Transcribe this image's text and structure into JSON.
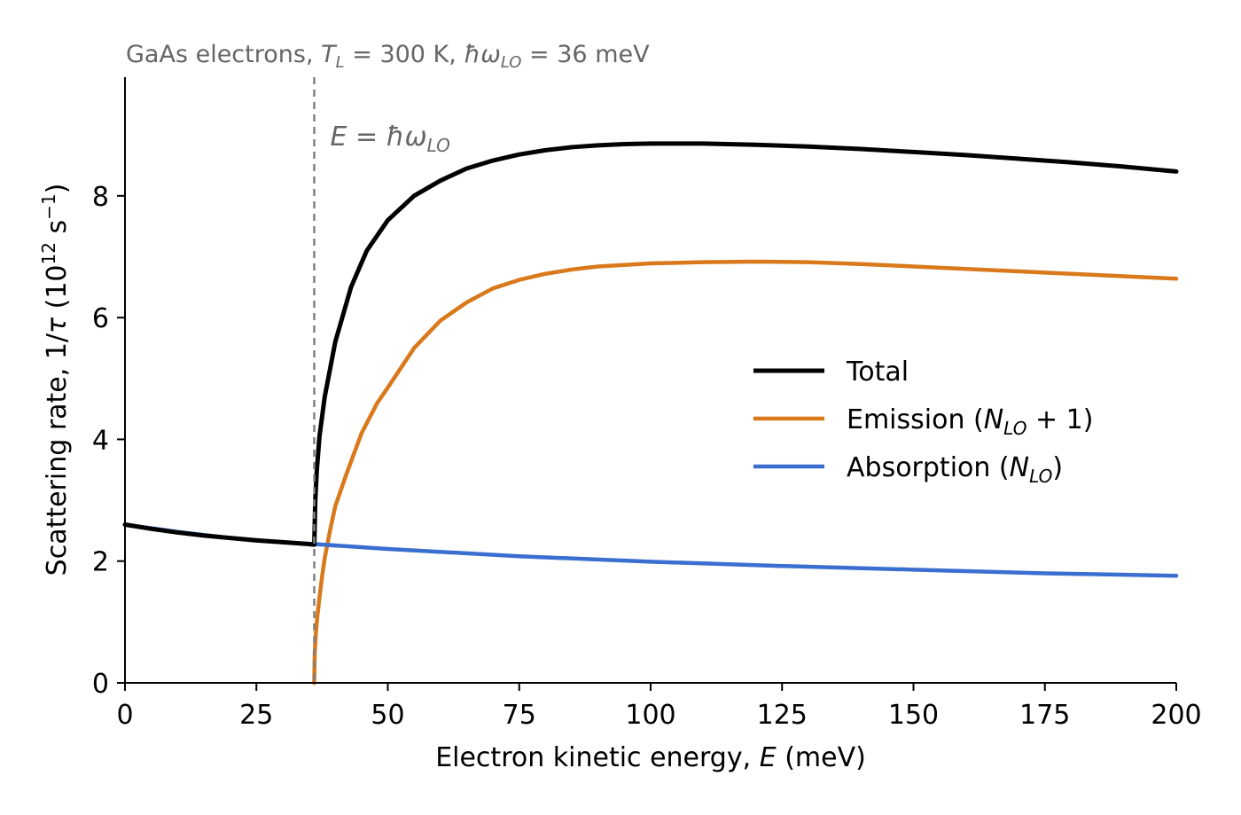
{
  "chart_data": {
    "type": "line",
    "title": "GaAs electrons, T_L = 300 K, ħω_LO = 36 meV",
    "title_parts": {
      "pre": "GaAs electrons, ",
      "t_sym": "T",
      "t_sub": "L",
      "t_val": " = 300 K, ",
      "hw_sym": "ħω",
      "hw_sub": "LO",
      "hw_val": " = 36 meV"
    },
    "xlabel": "Electron kinetic energy, E (meV)",
    "xlabel_parts": {
      "pre": "Electron kinetic energy, ",
      "sym": "E",
      "post": " (meV)"
    },
    "ylabel": "Scattering rate, 1/τ (10^12 s^-1)",
    "ylabel_parts": {
      "pre": "Scattering rate, 1/",
      "tau": "τ",
      "mid": " (10",
      "exp": "12",
      "unit": " s",
      "unit_exp": "−1",
      "post": ")"
    },
    "xlim": [
      0,
      200
    ],
    "ylim": [
      0,
      9.95
    ],
    "xticks": [
      0,
      25,
      50,
      75,
      100,
      125,
      150,
      175,
      200
    ],
    "yticks": [
      0,
      2,
      4,
      6,
      8
    ],
    "threshold": {
      "x": 36,
      "label": "E = ħω_LO",
      "label_parts": {
        "sym": "E",
        "eq": " = ",
        "hw": "ħω",
        "sub": "LO"
      },
      "color": "#808080"
    },
    "legend_position": "center-right",
    "grid": false,
    "series": [
      {
        "name": "Total",
        "name_parts": {
          "pre": "Total",
          "sym": "",
          "sub": "",
          "post": ""
        },
        "color": "#000000",
        "x": [
          0,
          5,
          10,
          15,
          20,
          25,
          30,
          35,
          35.99,
          36.01,
          36.2,
          36.5,
          37,
          38,
          40,
          43,
          46,
          50,
          55,
          60,
          65,
          70,
          75,
          80,
          85,
          90,
          95,
          100,
          105,
          110,
          120,
          130,
          140,
          150,
          160,
          170,
          180,
          190,
          200
        ],
        "y": [
          2.6,
          2.53,
          2.47,
          2.42,
          2.38,
          2.34,
          2.31,
          2.28,
          2.27,
          2.27,
          3.0,
          3.5,
          4.05,
          4.7,
          5.6,
          6.5,
          7.1,
          7.6,
          8.0,
          8.25,
          8.45,
          8.58,
          8.68,
          8.75,
          8.8,
          8.83,
          8.85,
          8.86,
          8.86,
          8.86,
          8.84,
          8.81,
          8.77,
          8.72,
          8.67,
          8.61,
          8.55,
          8.48,
          8.4
        ]
      },
      {
        "name": "Emission (N_LO + 1)",
        "name_parts": {
          "pre": "Emission  (",
          "sym": "N",
          "sub": "LO",
          "post": " + 1)"
        },
        "color": "#d9791b",
        "x": [
          36.0,
          36.1,
          36.3,
          36.6,
          37,
          37.5,
          38,
          39,
          40,
          42,
          45,
          48,
          50,
          55,
          60,
          65,
          70,
          75,
          80,
          85,
          90,
          100,
          110,
          120,
          130,
          140,
          150,
          160,
          170,
          180,
          190,
          200
        ],
        "y": [
          0.0,
          0.5,
          0.8,
          1.1,
          1.4,
          1.75,
          2.05,
          2.5,
          2.9,
          3.4,
          4.1,
          4.6,
          4.85,
          5.5,
          5.95,
          6.25,
          6.48,
          6.62,
          6.72,
          6.79,
          6.84,
          6.89,
          6.91,
          6.92,
          6.91,
          6.88,
          6.84,
          6.8,
          6.76,
          6.72,
          6.68,
          6.64
        ]
      },
      {
        "name": "Absorption (N_LO)",
        "name_parts": {
          "pre": "Absorption  (",
          "sym": "N",
          "sub": "LO",
          "post": ")"
        },
        "color": "#3a6fd0",
        "x": [
          0,
          10,
          20,
          30,
          36,
          50,
          75,
          100,
          125,
          150,
          175,
          200
        ],
        "y": [
          2.6,
          2.48,
          2.38,
          2.31,
          2.28,
          2.2,
          2.08,
          1.99,
          1.92,
          1.86,
          1.8,
          1.76
        ]
      }
    ]
  }
}
